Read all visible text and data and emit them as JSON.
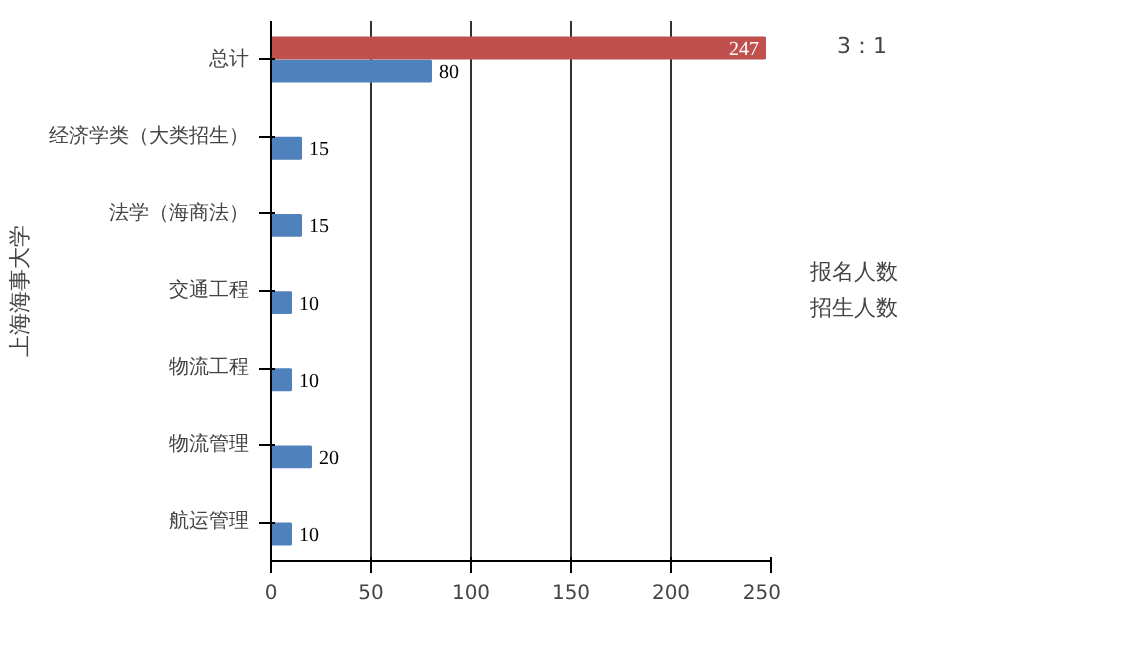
{
  "chart_data": {
    "type": "bar",
    "orientation": "horizontal",
    "ylabel": "上海海事大学",
    "categories": [
      "总计",
      "经济学类（大类招生）",
      "法学（海商法）",
      "交通工程",
      "物流工程",
      "物流管理",
      "航运管理"
    ],
    "series": [
      {
        "name": "报名人数",
        "color": "#c0504d",
        "values": [
          247,
          null,
          null,
          null,
          null,
          null,
          null
        ]
      },
      {
        "name": "招生人数",
        "color": "#4f81bd",
        "values": [
          80,
          15,
          15,
          10,
          10,
          20,
          10
        ]
      }
    ],
    "xlim": [
      0,
      250
    ],
    "xticks": [
      0,
      50,
      100,
      150,
      200,
      250
    ],
    "grid": "x",
    "legend": "right",
    "data_labels": true,
    "annotations": [
      "3：1"
    ]
  }
}
